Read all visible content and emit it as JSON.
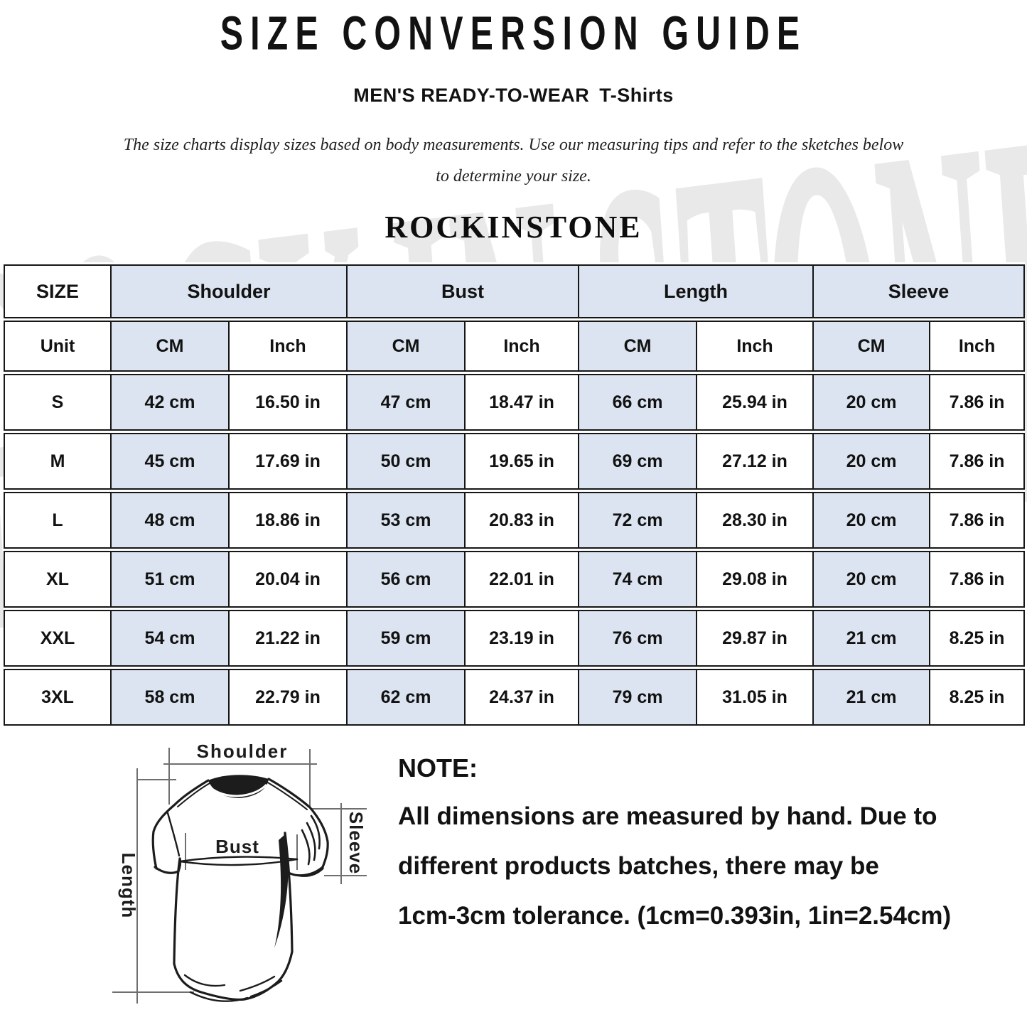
{
  "page": {
    "title": "SIZE CONVERSION GUIDE",
    "subtitle_main": "MEN'S READY-TO-WEAR",
    "subtitle_sub": "T-Shirts",
    "description": "The size charts display sizes based on body measurements. Use our measuring tips and refer to the sketches below to determine your size.",
    "brand": "ROCKINSTONE",
    "watermark": "ROCK IN STONE"
  },
  "size_table": {
    "group_headers": [
      "SIZE",
      "Shoulder",
      "Bust",
      "Length",
      "Sleeve"
    ],
    "unit_row": [
      "Unit",
      "CM",
      "Inch",
      "CM",
      "Inch",
      "CM",
      "Inch",
      "CM",
      "Inch"
    ],
    "rows": [
      {
        "size": "S",
        "cells": [
          "42 cm",
          "16.50 in",
          "47 cm",
          "18.47 in",
          "66 cm",
          "25.94 in",
          "20 cm",
          "7.86 in"
        ]
      },
      {
        "size": "M",
        "cells": [
          "45 cm",
          "17.69 in",
          "50 cm",
          "19.65 in",
          "69 cm",
          "27.12 in",
          "20 cm",
          "7.86 in"
        ]
      },
      {
        "size": "L",
        "cells": [
          "48 cm",
          "18.86 in",
          "53 cm",
          "20.83 in",
          "72 cm",
          "28.30 in",
          "20 cm",
          "7.86 in"
        ]
      },
      {
        "size": "XL",
        "cells": [
          "51 cm",
          "20.04 in",
          "56 cm",
          "22.01 in",
          "74 cm",
          "29.08 in",
          "20 cm",
          "7.86 in"
        ]
      },
      {
        "size": "XXL",
        "cells": [
          "54 cm",
          "21.22 in",
          "59 cm",
          "23.19 in",
          "76 cm",
          "29.87 in",
          "21 cm",
          "8.25 in"
        ]
      },
      {
        "size": "3XL",
        "cells": [
          "58 cm",
          "22.79 in",
          "62 cm",
          "24.37 in",
          "79 cm",
          "31.05 in",
          "21 cm",
          "8.25 in"
        ]
      }
    ],
    "colors": {
      "header_fill": "#dbe4f0",
      "border": "#161616"
    }
  },
  "diagram": {
    "labels": {
      "shoulder": "Shoulder",
      "bust": "Bust",
      "length": "Length",
      "sleeve": "Sleeve"
    }
  },
  "note": {
    "heading": "NOTE:",
    "lines": [
      "All dimensions are measured by hand. Due to",
      "different products batches, there may be",
      "1cm-3cm tolerance. (1cm=0.393in, 1in=2.54cm)"
    ]
  }
}
